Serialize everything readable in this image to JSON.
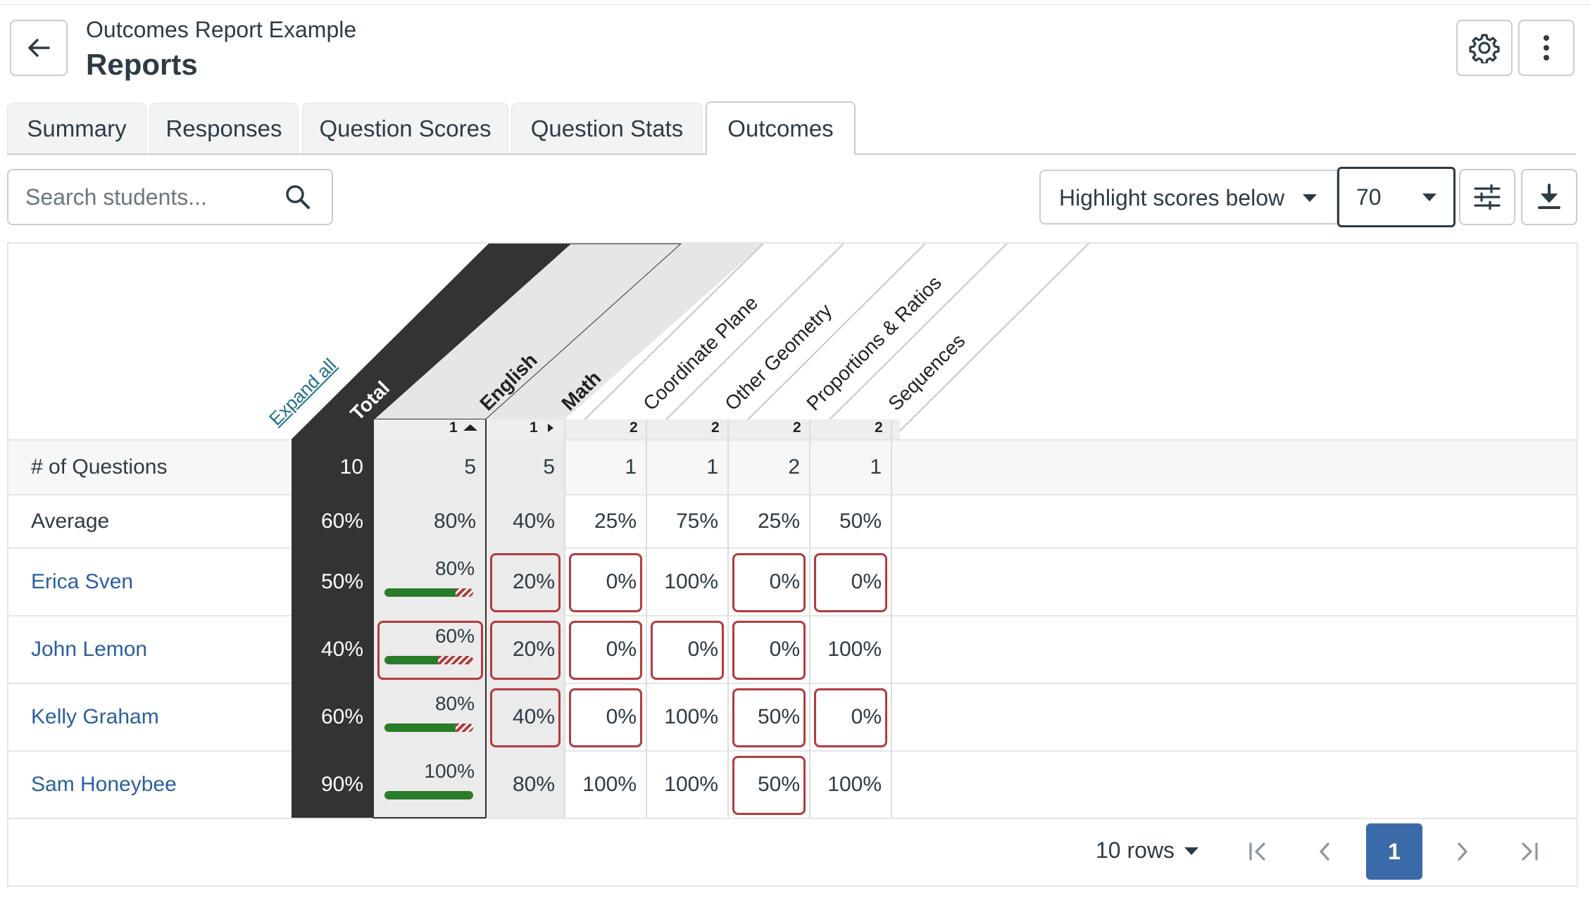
{
  "header": {
    "subtitle": "Outcomes Report Example",
    "title": "Reports"
  },
  "tabs": [
    {
      "label": "Summary"
    },
    {
      "label": "Responses"
    },
    {
      "label": "Question Scores"
    },
    {
      "label": "Question Stats"
    },
    {
      "label": "Outcomes",
      "active": true
    }
  ],
  "search": {
    "placeholder": "Search students..."
  },
  "highlight": {
    "label": "Highlight scores below",
    "value": "70"
  },
  "grid": {
    "expand_all": "Expand all",
    "columns": [
      {
        "label": "Total",
        "count": ""
      },
      {
        "label": "English",
        "count": "1"
      },
      {
        "label": "Math",
        "count": "1"
      },
      {
        "label": "Coordinate Plane",
        "count": "2"
      },
      {
        "label": "Other Geometry",
        "count": "2"
      },
      {
        "label": "Proportions & Ratios",
        "count": "2"
      },
      {
        "label": "Sequences",
        "count": "2"
      }
    ],
    "summary_rows": [
      {
        "label": "# of Questions",
        "values": [
          "10",
          "5",
          "5",
          "1",
          "1",
          "2",
          "1"
        ]
      },
      {
        "label": "Average",
        "values": [
          "60%",
          "80%",
          "40%",
          "25%",
          "75%",
          "25%",
          "50%"
        ]
      }
    ],
    "students": [
      {
        "name": "Erica Sven",
        "total": "50%",
        "english": "80%",
        "english_frac": 0.8,
        "values": [
          "20%",
          "0%",
          "100%",
          "0%",
          "0%"
        ]
      },
      {
        "name": "John Lemon",
        "total": "40%",
        "english": "60%",
        "english_frac": 0.6,
        "values": [
          "20%",
          "0%",
          "0%",
          "0%",
          "100%"
        ]
      },
      {
        "name": "Kelly Graham",
        "total": "60%",
        "english": "80%",
        "english_frac": 0.8,
        "values": [
          "40%",
          "0%",
          "100%",
          "50%",
          "0%"
        ]
      },
      {
        "name": "Sam Honeybee",
        "total": "90%",
        "english": "100%",
        "english_frac": 1.0,
        "values": [
          "80%",
          "100%",
          "100%",
          "50%",
          "100%"
        ]
      }
    ]
  },
  "pagination": {
    "rows_label": "10 rows",
    "current_page": "1"
  },
  "colors": {
    "dark_column": "#333333",
    "highlight_border": "#b23b3f",
    "link": "#2b5f9e",
    "bar_fill": "#2a7c2a",
    "accent": "#3b6aa8"
  },
  "icons": [
    "back-arrow-icon",
    "gear-icon",
    "more-vertical-icon",
    "search-icon",
    "filter-sliders-icon",
    "download-icon",
    "first-page-icon",
    "prev-page-icon",
    "next-page-icon",
    "last-page-icon"
  ]
}
